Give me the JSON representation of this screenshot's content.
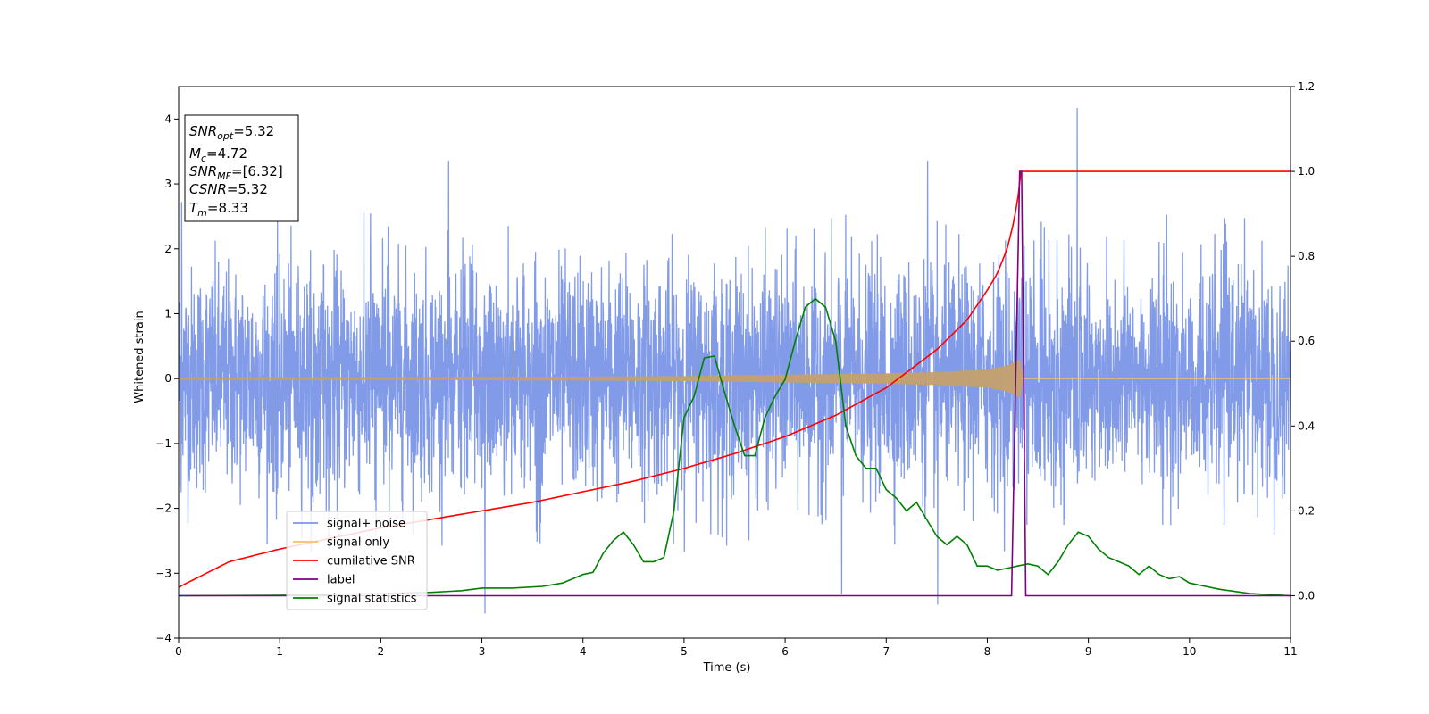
{
  "chart_data": {
    "type": "line",
    "xlabel": "Time (s)",
    "ylabel": "Whitened strain",
    "xlim": [
      0,
      11
    ],
    "ylim": [
      -4,
      4.5
    ],
    "y2lim": [
      -0.1,
      1.2
    ],
    "x_ticks": [
      0,
      1,
      2,
      3,
      4,
      5,
      6,
      7,
      8,
      9,
      10,
      11
    ],
    "y_ticks": [
      -4,
      -3,
      -2,
      -1,
      0,
      1,
      2,
      3,
      4
    ],
    "y2_ticks": [
      0.0,
      0.2,
      0.4,
      0.6,
      0.8,
      1.0,
      1.2
    ],
    "x_tick_labels": [
      "0",
      "1",
      "2",
      "3",
      "4",
      "5",
      "6",
      "7",
      "8",
      "9",
      "10",
      "11"
    ],
    "y_tick_labels": [
      "−4",
      "−3",
      "−2",
      "−1",
      "0",
      "1",
      "2",
      "3",
      "4"
    ],
    "y2_tick_labels": [
      "0.0",
      "0.2",
      "0.4",
      "0.6",
      "0.8",
      "1.0",
      "1.2"
    ],
    "legend": {
      "position": "lower-left",
      "entries": [
        {
          "label": "signal+ noise",
          "color": "#7b96e8"
        },
        {
          "label": "signal only",
          "color": "#f5c26b"
        },
        {
          "label": "cumilative SNR",
          "color": "#ff0000"
        },
        {
          "label": "label",
          "color": "#800080"
        },
        {
          "label": "signal statistics",
          "color": "#008000"
        }
      ]
    },
    "annotation_box": {
      "position": "top-left",
      "lines": [
        {
          "base": "SNR",
          "sub": "opt",
          "value": "=5.32"
        },
        {
          "base": "M",
          "sub": "c",
          "value": "=4.72"
        },
        {
          "base": "SNR",
          "sub": "MF",
          "value": "=[6.32]"
        },
        {
          "base": "CSNR",
          "sub": "",
          "value": "=5.32"
        },
        {
          "base": "T",
          "sub": "m",
          "value": "=8.33"
        }
      ]
    },
    "series": [
      {
        "name": "signal+ noise",
        "axis": "left",
        "color": "#7b96e8",
        "kind": "noise",
        "x_range": [
          0,
          11
        ],
        "typical_amplitude": [
          -1.8,
          2.0
        ],
        "peaks": [
          {
            "x": 8.89,
            "y": 4.17
          },
          {
            "x": 3.03,
            "y": -3.62
          },
          {
            "x": 7.51,
            "y": -3.48
          },
          {
            "x": 6.56,
            "y": -3.32
          },
          {
            "x": 2.67,
            "y": 3.36
          },
          {
            "x": 7.41,
            "y": 3.36
          },
          {
            "x": 0.03,
            "y": 2.72
          }
        ]
      },
      {
        "name": "signal only",
        "axis": "left",
        "color": "#f5c26b",
        "kind": "chirp_envelope",
        "x": [
          0,
          2,
          4,
          5,
          6,
          7,
          7.5,
          8,
          8.2,
          8.3,
          8.33,
          8.34,
          11
        ],
        "envelope": [
          0.02,
          0.02,
          0.03,
          0.04,
          0.06,
          0.08,
          0.1,
          0.14,
          0.2,
          0.28,
          0.3,
          0.0,
          0.0
        ]
      },
      {
        "name": "cumilative SNR",
        "axis": "right",
        "color": "#ff0000",
        "x": [
          0,
          0.5,
          1,
          1.5,
          2,
          2.5,
          3,
          3.5,
          4,
          4.5,
          5,
          5.5,
          6,
          6.5,
          7,
          7.5,
          7.8,
          8.0,
          8.1,
          8.2,
          8.25,
          8.3,
          8.33,
          8.4,
          11
        ],
        "values": [
          0.02,
          0.08,
          0.11,
          0.135,
          0.16,
          0.18,
          0.2,
          0.22,
          0.245,
          0.27,
          0.3,
          0.335,
          0.375,
          0.425,
          0.49,
          0.58,
          0.65,
          0.72,
          0.76,
          0.82,
          0.87,
          0.93,
          1.0,
          1.0,
          1.0
        ]
      },
      {
        "name": "label",
        "axis": "right",
        "color": "#800080",
        "x": [
          0,
          8.24,
          8.32,
          8.34,
          8.38,
          11
        ],
        "values": [
          0,
          0,
          1.0,
          1.0,
          0,
          0
        ]
      },
      {
        "name": "signal statistics",
        "axis": "right",
        "color": "#008000",
        "x": [
          0,
          1,
          2,
          2.5,
          2.8,
          3.0,
          3.3,
          3.6,
          3.8,
          4.0,
          4.1,
          4.2,
          4.3,
          4.4,
          4.5,
          4.6,
          4.7,
          4.8,
          4.9,
          5.0,
          5.1,
          5.2,
          5.3,
          5.4,
          5.5,
          5.6,
          5.7,
          5.8,
          5.9,
          6.0,
          6.1,
          6.2,
          6.3,
          6.4,
          6.5,
          6.6,
          6.7,
          6.8,
          6.9,
          7.0,
          7.1,
          7.2,
          7.3,
          7.4,
          7.5,
          7.6,
          7.7,
          7.8,
          7.9,
          8.0,
          8.1,
          8.2,
          8.3,
          8.4,
          8.5,
          8.6,
          8.7,
          8.8,
          8.9,
          9.0,
          9.1,
          9.2,
          9.3,
          9.4,
          9.5,
          9.6,
          9.7,
          9.8,
          9.9,
          10.0,
          10.1,
          10.3,
          10.6,
          11
        ],
        "values": [
          0.0,
          0.001,
          0.005,
          0.008,
          0.012,
          0.018,
          0.018,
          0.022,
          0.03,
          0.05,
          0.055,
          0.1,
          0.13,
          0.15,
          0.12,
          0.08,
          0.08,
          0.09,
          0.2,
          0.42,
          0.47,
          0.56,
          0.565,
          0.48,
          0.4,
          0.33,
          0.33,
          0.42,
          0.47,
          0.51,
          0.6,
          0.68,
          0.7,
          0.68,
          0.6,
          0.4,
          0.33,
          0.3,
          0.3,
          0.25,
          0.23,
          0.2,
          0.22,
          0.18,
          0.14,
          0.12,
          0.14,
          0.12,
          0.07,
          0.07,
          0.06,
          0.065,
          0.07,
          0.075,
          0.07,
          0.05,
          0.08,
          0.12,
          0.15,
          0.14,
          0.11,
          0.09,
          0.08,
          0.07,
          0.05,
          0.07,
          0.05,
          0.04,
          0.045,
          0.03,
          0.025,
          0.015,
          0.005,
          0.0
        ]
      }
    ]
  }
}
